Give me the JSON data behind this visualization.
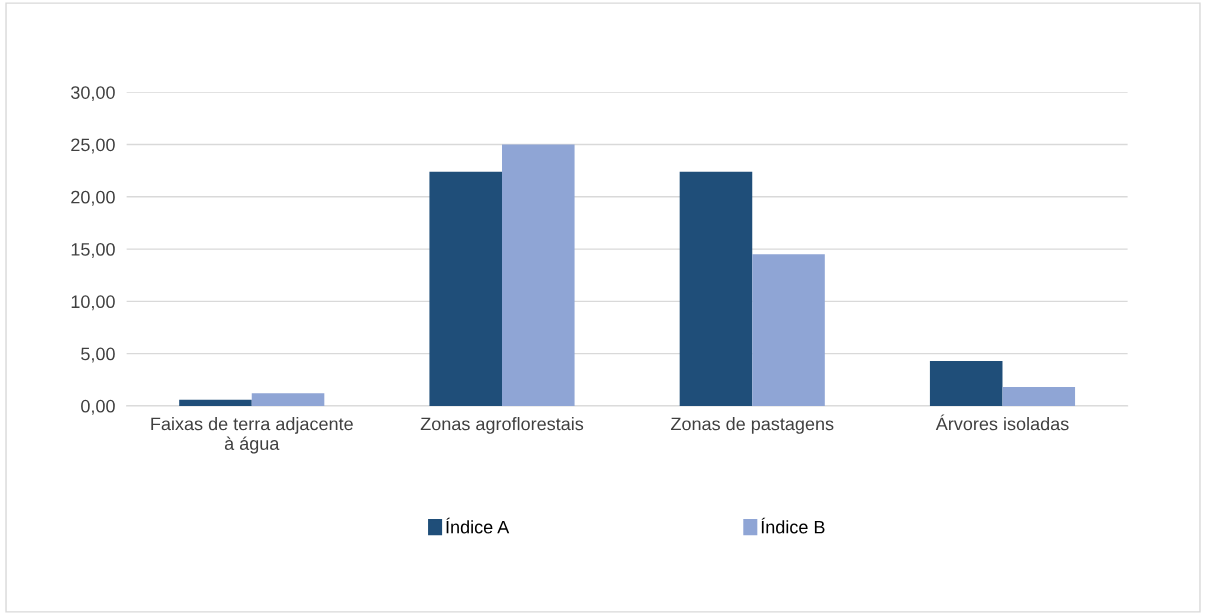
{
  "chart_data": {
    "type": "bar",
    "categories": [
      "Faixas de terra adjacente\nà água",
      "Zonas agroflorestais",
      "Zonas de pastagens",
      "Árvores isoladas"
    ],
    "series": [
      {
        "name": "Índice A",
        "color": "#1f4e79",
        "values": [
          0.6,
          22.4,
          22.4,
          4.3
        ]
      },
      {
        "name": "Índice B",
        "color": "#8fa5d5",
        "values": [
          1.2,
          25.0,
          14.5,
          1.8
        ]
      }
    ],
    "ylim": [
      0,
      30
    ],
    "yticks": [
      {
        "value": 0,
        "label": "0,00"
      },
      {
        "value": 5,
        "label": "5,00"
      },
      {
        "value": 10,
        "label": "10,00"
      },
      {
        "value": 15,
        "label": "15,00"
      },
      {
        "value": 20,
        "label": "20,00"
      },
      {
        "value": 25,
        "label": "25,00"
      },
      {
        "value": 30,
        "label": "30,00"
      }
    ],
    "grid": "y",
    "legend": "bottom"
  }
}
